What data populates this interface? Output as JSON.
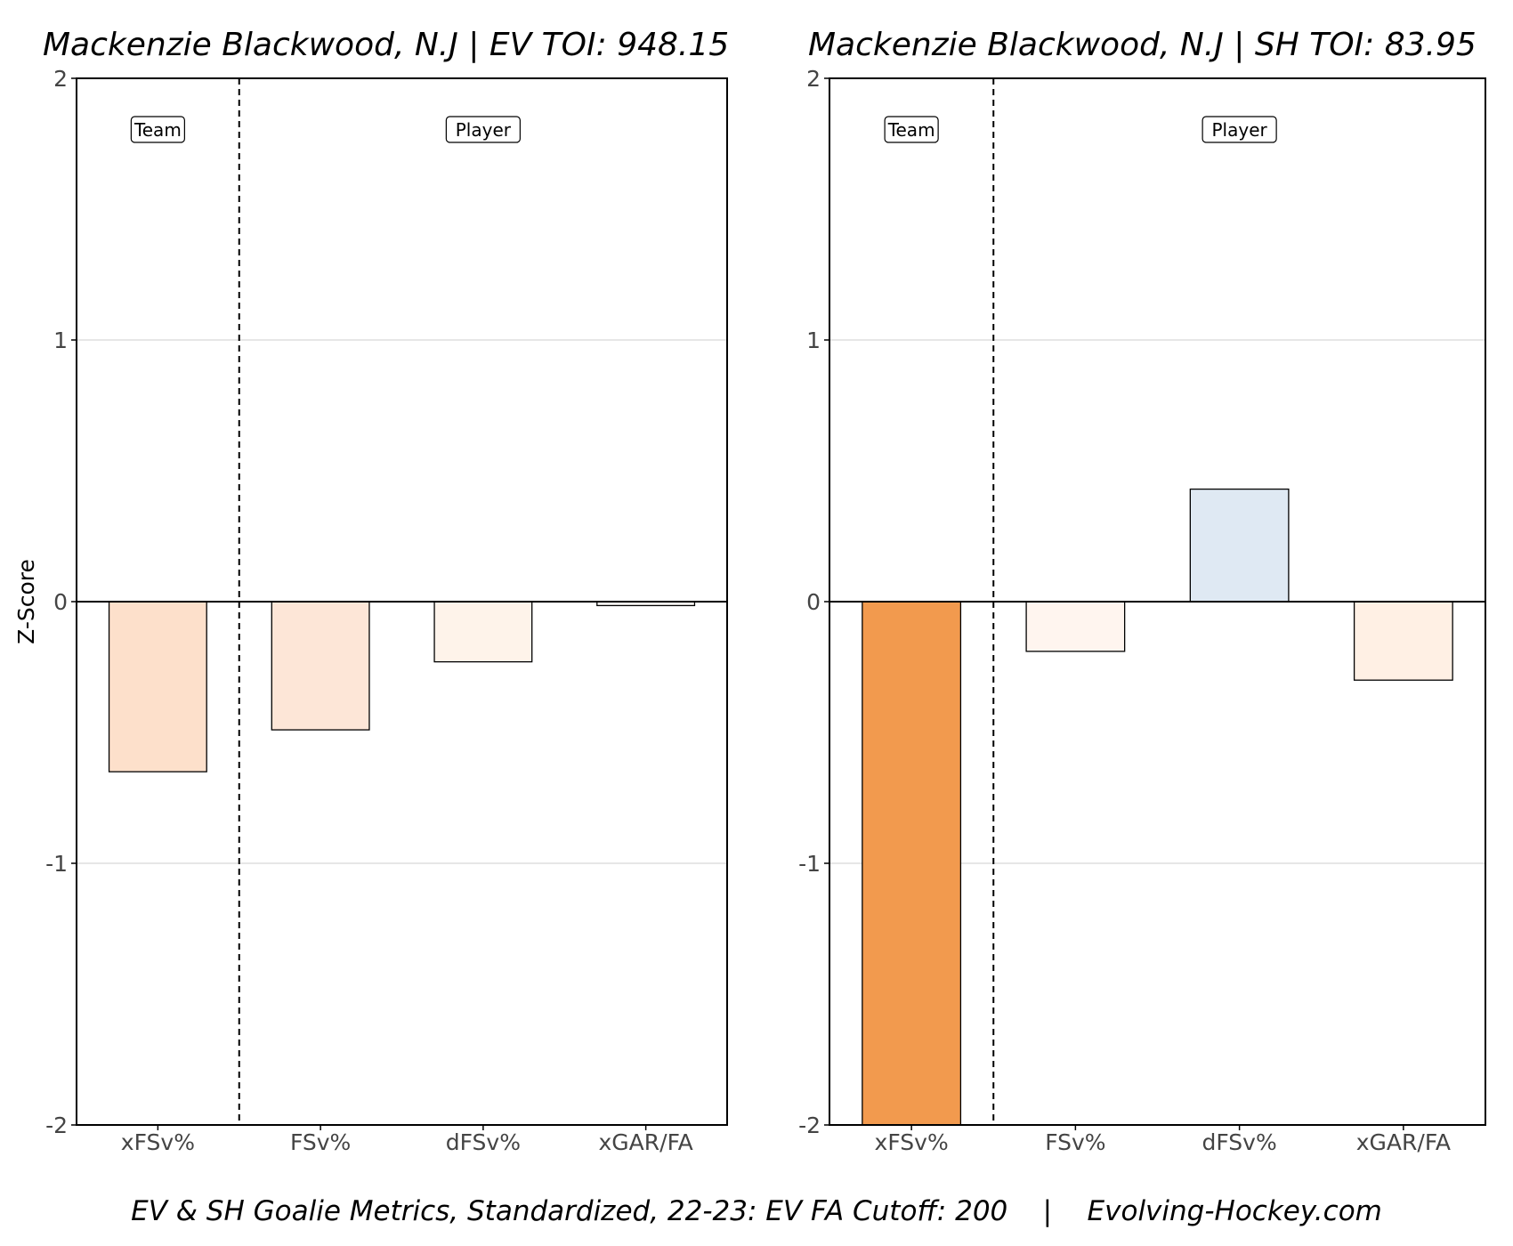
{
  "chart_data": [
    {
      "type": "bar",
      "title": "Mackenzie Blackwood, N.J | EV TOI: 948.15",
      "categories": [
        "xFSv%",
        "FSv%",
        "dFSv%",
        "xGAR/FA"
      ],
      "groups": [
        {
          "label": "Team",
          "categories": [
            "xFSv%"
          ]
        },
        {
          "label": "Player",
          "categories": [
            "FSv%",
            "dFSv%",
            "xGAR/FA"
          ]
        }
      ],
      "values": [
        -0.65,
        -0.49,
        -0.23,
        -0.015
      ],
      "bar_colors": [
        "#fde0cb",
        "#fde6d7",
        "#fef3ea",
        "#fffbf8"
      ],
      "ylabel": "Z-Score",
      "ylim": [
        -2,
        2
      ],
      "yticks": [
        -2,
        -1,
        0,
        1,
        2
      ],
      "ytick_labels": [
        "-2",
        "-1",
        "0",
        "1",
        "2"
      ]
    },
    {
      "type": "bar",
      "title": "Mackenzie Blackwood, N.J | SH TOI: 83.95",
      "categories": [
        "xFSv%",
        "FSv%",
        "dFSv%",
        "xGAR/FA"
      ],
      "groups": [
        {
          "label": "Team",
          "categories": [
            "xFSv%"
          ]
        },
        {
          "label": "Player",
          "categories": [
            "FSv%",
            "dFSv%",
            "xGAR/FA"
          ]
        }
      ],
      "values": [
        -2.0,
        -0.19,
        0.43,
        -0.3
      ],
      "bar_colors": [
        "#f29a4e",
        "#fff5ef",
        "#dfe9f3",
        "#fff0e4"
      ],
      "ylabel": "",
      "ylim": [
        -2,
        2
      ],
      "yticks": [
        -2,
        -1,
        0,
        1,
        2
      ],
      "ytick_labels": [
        "-2",
        "-1",
        "0",
        "1",
        "2"
      ]
    }
  ],
  "footer": {
    "text": "EV & SH Goalie Metrics, Standardized, 22-23: EV FA Cutoff: 200    |    Evolving-Hockey.com"
  }
}
